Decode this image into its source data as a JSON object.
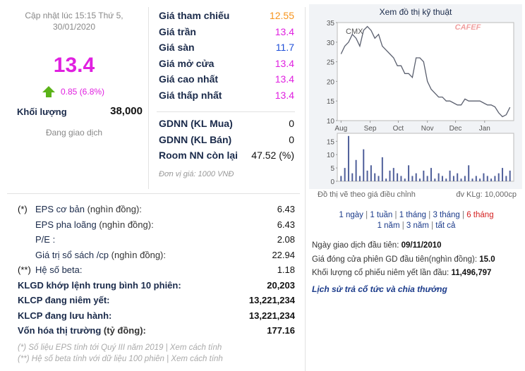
{
  "quote": {
    "updated": [
      "Cập nhật lúc 15:15 Thứ 5,",
      "30/01/2020"
    ],
    "price": "13.4",
    "change": "0.85 (6.8%)",
    "volume_label": "Khối lượng",
    "volume": "38,000",
    "status": "Đang giao dịch"
  },
  "prices": [
    {
      "label": "Giá tham chiếu",
      "value": "12.55",
      "color": "#f7941d"
    },
    {
      "label": "Giá trần",
      "value": "13.4",
      "color": "#e020e0"
    },
    {
      "label": "Giá sàn",
      "value": "11.7",
      "color": "#1f4fd8"
    },
    {
      "label": "Giá mở cửa",
      "value": "13.4",
      "color": "#e020e0"
    },
    {
      "label": "Giá cao nhất",
      "value": "13.4",
      "color": "#e020e0"
    },
    {
      "label": "Giá thấp nhất",
      "value": "13.4",
      "color": "#e020e0"
    }
  ],
  "foreign": [
    {
      "label": "GDNN (KL Mua)",
      "value": "0"
    },
    {
      "label": "GDNN (KL Bán)",
      "value": "0"
    },
    {
      "label": "Room NN còn lại",
      "value": "47.52 (%)"
    }
  ],
  "unit_note": "Đơn vị giá: 1000 VNĐ",
  "metrics": [
    {
      "prefix": "(*)",
      "label": "EPS cơ bản",
      "suffix": " (nghìn đồng):",
      "value": "6.43"
    },
    {
      "label": "EPS pha loãng",
      "suffix": " (nghìn đồng):",
      "value": "6.43"
    },
    {
      "label": "P/E :",
      "value": "2.08"
    },
    {
      "label": "Giá trị sổ sách /cp",
      "suffix": " (nghìn đồng):",
      "value": "22.94"
    },
    {
      "prefix": "(**)",
      "label": "Hệ số beta:",
      "value": "1.18"
    },
    {
      "label": "KLGD khớp lệnh trung bình 10 phiên:",
      "value": "20,203",
      "bold": true
    },
    {
      "label": "KLCP đang niêm yết:",
      "value": "13,221,234",
      "bold": true
    },
    {
      "label": "KLCP đang lưu hành:",
      "value": "13,221,234",
      "bold": true
    },
    {
      "label": "Vốn hóa thị trường",
      "suffix": " (tỷ đồng):",
      "value": "177.16",
      "bold": true
    }
  ],
  "notes": [
    "(*) Số liệu EPS tính tới Quý III năm 2019 | Xem cách tính",
    "(**) Hệ số beta tính với dữ liệu 100 phiên | Xem cách tính"
  ],
  "chart_data": {
    "type": "line",
    "title": "Xem đồ thị kỹ thuật",
    "symbol": "CMX",
    "watermark": "CAFEF",
    "x": [
      0,
      4,
      8,
      12,
      16,
      20,
      24,
      28,
      32,
      36,
      40,
      44,
      48,
      52,
      56,
      60,
      64,
      68,
      72,
      76,
      80,
      84,
      88,
      92,
      96,
      100,
      104,
      108,
      112,
      116,
      120,
      124,
      128,
      132,
      136,
      140,
      144,
      148,
      152,
      156,
      160,
      164,
      168,
      172,
      176,
      180
    ],
    "xlim": [
      -4,
      184
    ],
    "xticks": [
      {
        "value": 0,
        "label": "Aug"
      },
      {
        "value": 31,
        "label": "Sep"
      },
      {
        "value": 61,
        "label": "Oct"
      },
      {
        "value": 92,
        "label": "Nov"
      },
      {
        "value": 122,
        "label": "Dec"
      },
      {
        "value": 153,
        "label": "Jan"
      }
    ],
    "ylim": [
      10,
      35
    ],
    "yticks": [
      10,
      15,
      20,
      25,
      30,
      35
    ],
    "y2lim": [
      0,
      18
    ],
    "y2ticks": [
      0,
      5,
      10,
      15
    ],
    "series": [
      {
        "color": "#5a5f6e",
        "values": [
          27,
          29,
          30,
          32,
          31,
          29,
          33,
          34,
          33,
          31,
          32,
          29,
          28,
          27,
          26,
          24,
          24,
          22,
          22,
          21,
          26,
          26,
          25,
          20,
          18,
          17,
          16,
          16,
          15,
          15,
          14.5,
          14,
          14,
          15.5,
          15,
          15,
          15,
          15,
          14.5,
          14,
          14,
          13.5,
          12,
          11,
          11.5,
          13.4
        ]
      },
      {
        "axis": "y2",
        "color": "#4f5f9a",
        "values": [
          2,
          5,
          17,
          3,
          8,
          2,
          12,
          4,
          6,
          3,
          2,
          9,
          1,
          4,
          5,
          3,
          2,
          1,
          6,
          2,
          3,
          1,
          4,
          2,
          5,
          1,
          3,
          2,
          1,
          4,
          2,
          3,
          1,
          2,
          6,
          1,
          2,
          1,
          3,
          2,
          1,
          2,
          3,
          5,
          2,
          4
        ]
      }
    ],
    "caption": "Đồ thị vẽ theo giá điều chỉnh",
    "volume_unit": "đv KLg: 10,000cp",
    "periods": [
      "1 ngày",
      "1 tuần",
      "1 tháng",
      "3 tháng",
      "6 tháng",
      "1 năm",
      "3 năm",
      "tất cả"
    ],
    "selected_period": 4
  },
  "listing": [
    {
      "label": "Ngày giao dịch đầu tiên: ",
      "value": "09/11/2010"
    },
    {
      "label": "Giá đóng cửa phiên GD đầu tiên(nghìn đồng): ",
      "value": "15.0"
    },
    {
      "label": "Khối lượng cổ phiếu niêm yết lần đầu: ",
      "value": "11,496,797"
    }
  ],
  "dividend_link": "Lịch sử trả cổ tức và chia thưởng"
}
